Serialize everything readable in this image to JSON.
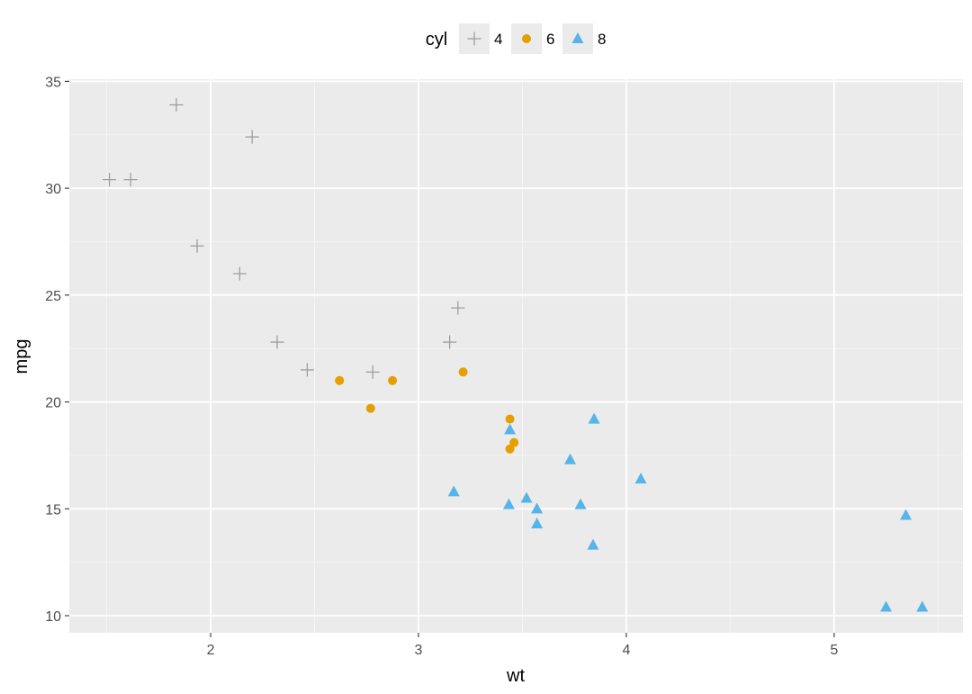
{
  "chart_data": {
    "type": "scatter",
    "title": "",
    "xlabel": "wt",
    "ylabel": "mpg",
    "xlim": [
      1.32,
      5.62
    ],
    "ylim": [
      9.2,
      35.1
    ],
    "xticks": [
      2,
      3,
      4,
      5
    ],
    "yticks": [
      10,
      15,
      20,
      25,
      30,
      35
    ],
    "grid": true,
    "legend": {
      "title": "cyl",
      "placement": "top"
    },
    "series": [
      {
        "name": "4",
        "marker": "plus",
        "color": "#999999",
        "points": [
          {
            "x": 1.513,
            "y": 30.4
          },
          {
            "x": 1.615,
            "y": 30.4
          },
          {
            "x": 1.835,
            "y": 33.9
          },
          {
            "x": 1.935,
            "y": 27.3
          },
          {
            "x": 2.14,
            "y": 26.0
          },
          {
            "x": 2.2,
            "y": 32.4
          },
          {
            "x": 2.32,
            "y": 22.8
          },
          {
            "x": 2.465,
            "y": 21.5
          },
          {
            "x": 2.78,
            "y": 21.4
          },
          {
            "x": 3.15,
            "y": 22.8
          },
          {
            "x": 3.19,
            "y": 24.4
          }
        ]
      },
      {
        "name": "6",
        "marker": "circle",
        "color": "#E69F00",
        "points": [
          {
            "x": 2.62,
            "y": 21.0
          },
          {
            "x": 2.77,
            "y": 19.7
          },
          {
            "x": 2.875,
            "y": 21.0
          },
          {
            "x": 3.215,
            "y": 21.4
          },
          {
            "x": 3.44,
            "y": 19.2
          },
          {
            "x": 3.44,
            "y": 17.8
          },
          {
            "x": 3.46,
            "y": 18.1
          }
        ]
      },
      {
        "name": "8",
        "marker": "triangle",
        "color": "#56B4E9",
        "points": [
          {
            "x": 3.17,
            "y": 15.8
          },
          {
            "x": 3.435,
            "y": 15.2
          },
          {
            "x": 3.44,
            "y": 18.7
          },
          {
            "x": 3.52,
            "y": 15.5
          },
          {
            "x": 3.57,
            "y": 15.0
          },
          {
            "x": 3.57,
            "y": 14.3
          },
          {
            "x": 3.73,
            "y": 17.3
          },
          {
            "x": 3.78,
            "y": 15.2
          },
          {
            "x": 3.84,
            "y": 13.3
          },
          {
            "x": 3.845,
            "y": 19.2
          },
          {
            "x": 4.07,
            "y": 16.4
          },
          {
            "x": 5.25,
            "y": 10.4
          },
          {
            "x": 5.345,
            "y": 14.7
          },
          {
            "x": 5.424,
            "y": 10.4
          }
        ]
      }
    ]
  }
}
